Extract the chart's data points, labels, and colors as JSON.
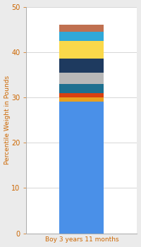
{
  "category": "Boy 3 years 11 months",
  "segments": [
    {
      "value": 29.0,
      "color": "#4A90E8"
    },
    {
      "value": 1.0,
      "color": "#E8A020"
    },
    {
      "value": 1.0,
      "color": "#D94010"
    },
    {
      "value": 2.0,
      "color": "#1E7090"
    },
    {
      "value": 2.5,
      "color": "#B8B8B8"
    },
    {
      "value": 3.0,
      "color": "#1E3A5F"
    },
    {
      "value": 4.0,
      "color": "#FAD84A"
    },
    {
      "value": 2.0,
      "color": "#30A8D8"
    },
    {
      "value": 1.5,
      "color": "#C07050"
    }
  ],
  "ylabel": "Percentile Weight in Pounds",
  "ylim": [
    0,
    50
  ],
  "yticks": [
    0,
    10,
    20,
    30,
    40,
    50
  ],
  "bg_color": "#EBEBEB",
  "plot_bg_color": "#FFFFFF",
  "xlabel_color": "#CC6600",
  "ylabel_color": "#CC6600",
  "tick_color": "#CC6600",
  "gridline_color": "#D0D0D0",
  "bar_width": 0.4
}
